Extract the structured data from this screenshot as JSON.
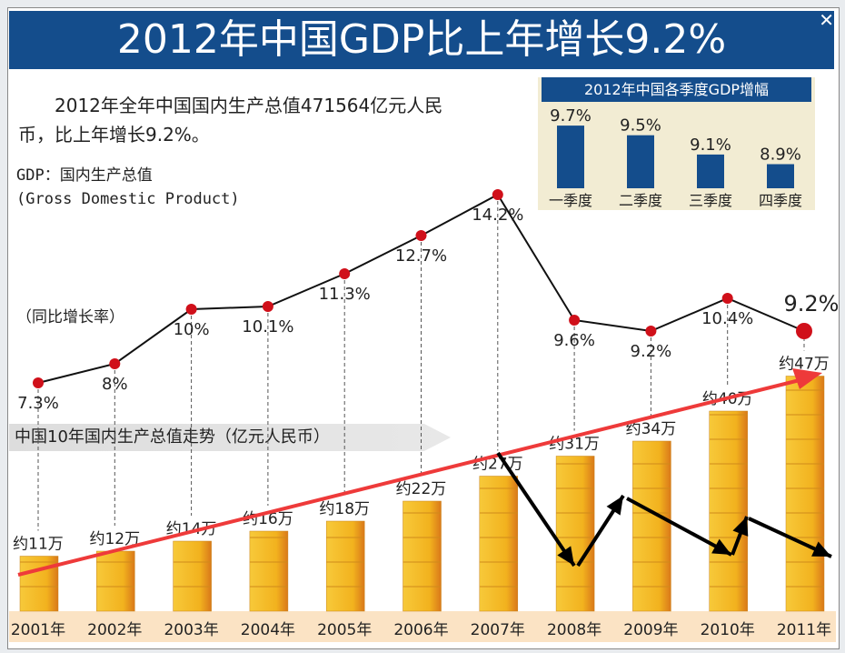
{
  "title": "2012年中国GDP比上年增长9.2%",
  "intro": "2012年全年中国国内生产总值471564亿元人民币，比上年增长9.2%。",
  "definition_line1": "GDP：国内生产总值",
  "definition_line2": "(Gross Domestic Product)",
  "rate_label": "（同比增长率）",
  "banner": "中国10年国内生产总值走势（亿元人民币）",
  "close_icon": "close-icon",
  "colors": {
    "title_bg": "#144d8c",
    "dot": "#d0101a",
    "bar": "#f2b21e",
    "trend_arrow": "#ee3a3a"
  },
  "chart_data": [
    {
      "type": "line",
      "title": "",
      "x": [
        "2001年",
        "2002年",
        "2003年",
        "2004年",
        "2005年",
        "2006年",
        "2007年",
        "2008年",
        "2009年",
        "2010年",
        "2011年"
      ],
      "values": [
        7.3,
        8,
        10,
        10.1,
        11.3,
        12.7,
        14.2,
        9.6,
        9.2,
        10.4,
        9.2
      ],
      "labels": [
        "7.3%",
        "8%",
        "10%",
        "10.1%",
        "11.3%",
        "12.7%",
        "14.2%",
        "9.6%",
        "9.2%",
        "10.4%",
        "9.2%"
      ]
    },
    {
      "type": "bar",
      "categories": [
        "2001年",
        "2002年",
        "2003年",
        "2004年",
        "2005年",
        "2006年",
        "2007年",
        "2008年",
        "2009年",
        "2010年",
        "2011年"
      ],
      "values": [
        11,
        12,
        14,
        16,
        18,
        22,
        27,
        31,
        34,
        40,
        47
      ],
      "labels": [
        "约11万",
        "约12万",
        "约14万",
        "约16万",
        "约18万",
        "约22万",
        "约27万",
        "约31万",
        "约34万",
        "约40万",
        "约47万"
      ]
    },
    {
      "type": "bar",
      "title": "2012年中国各季度GDP增幅",
      "categories": [
        "一季度",
        "二季度",
        "三季度",
        "四季度"
      ],
      "values": [
        9.7,
        9.5,
        9.1,
        8.9
      ],
      "labels": [
        "9.7%",
        "9.5%",
        "9.1%",
        "8.9%"
      ]
    }
  ]
}
